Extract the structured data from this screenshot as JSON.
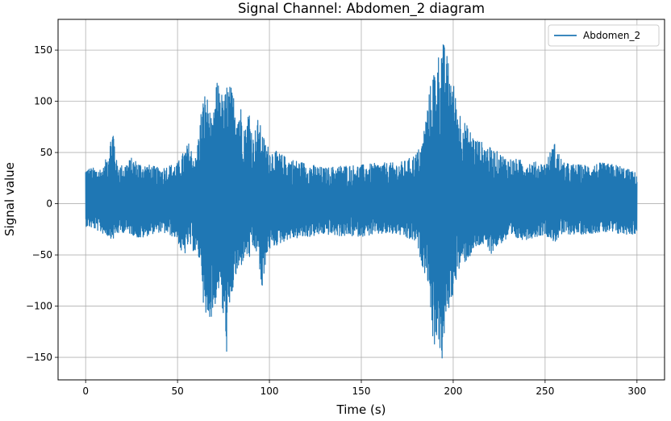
{
  "chart_data": {
    "type": "line",
    "title": "Signal Channel: Abdomen_2 diagram",
    "xlabel": "Time (s)",
    "ylabel": "Signal value",
    "xlim": [
      -15,
      315
    ],
    "ylim": [
      -172,
      180
    ],
    "x_ticks": [
      0,
      50,
      100,
      150,
      200,
      250,
      300
    ],
    "y_ticks": [
      -150,
      -100,
      -50,
      0,
      50,
      100,
      150
    ],
    "x_tick_labels": [
      "0",
      "50",
      "100",
      "150",
      "200",
      "250",
      "300"
    ],
    "y_tick_labels": [
      "−150",
      "−100",
      "−50",
      "0",
      "50",
      "100",
      "150"
    ],
    "grid": true,
    "legend_position": "top-right",
    "color": "#1f77b4",
    "series": [
      {
        "name": "Abdomen_2",
        "envelope": [
          [
            0,
            -22,
            36
          ],
          [
            5,
            -25,
            35
          ],
          [
            10,
            -30,
            36
          ],
          [
            15,
            -35,
            77
          ],
          [
            17,
            -30,
            40
          ],
          [
            20,
            -28,
            38
          ],
          [
            25,
            -30,
            45
          ],
          [
            30,
            -35,
            40
          ],
          [
            35,
            -30,
            38
          ],
          [
            40,
            -28,
            35
          ],
          [
            45,
            -30,
            38
          ],
          [
            50,
            -35,
            40
          ],
          [
            53,
            -55,
            50
          ],
          [
            56,
            -40,
            60
          ],
          [
            60,
            -50,
            45
          ],
          [
            63,
            -60,
            95
          ],
          [
            65,
            -130,
            110
          ],
          [
            67,
            -110,
            100
          ],
          [
            69,
            -112,
            75
          ],
          [
            71,
            -95,
            118
          ],
          [
            73,
            -80,
            120
          ],
          [
            75,
            -120,
            100
          ],
          [
            77,
            -150,
            120
          ],
          [
            79,
            -100,
            115
          ],
          [
            81,
            -75,
            105
          ],
          [
            83,
            -70,
            100
          ],
          [
            85,
            -60,
            95
          ],
          [
            87,
            -50,
            75
          ],
          [
            89,
            -55,
            97
          ],
          [
            91,
            -45,
            65
          ],
          [
            94,
            -50,
            85
          ],
          [
            96,
            -95,
            70
          ],
          [
            98,
            -55,
            60
          ],
          [
            100,
            -45,
            55
          ],
          [
            105,
            -40,
            50
          ],
          [
            110,
            -35,
            45
          ],
          [
            120,
            -33,
            40
          ],
          [
            130,
            -30,
            35
          ],
          [
            140,
            -32,
            38
          ],
          [
            150,
            -32,
            38
          ],
          [
            160,
            -30,
            40
          ],
          [
            170,
            -30,
            40
          ],
          [
            175,
            -35,
            43
          ],
          [
            180,
            -38,
            50
          ],
          [
            183,
            -60,
            60
          ],
          [
            185,
            -70,
            85
          ],
          [
            187,
            -80,
            110
          ],
          [
            189,
            -145,
            130
          ],
          [
            191,
            -130,
            140
          ],
          [
            193,
            -150,
            155
          ],
          [
            194,
            -155,
            162
          ],
          [
            196,
            -120,
            150
          ],
          [
            198,
            -100,
            135
          ],
          [
            200,
            -90,
            120
          ],
          [
            202,
            -70,
            100
          ],
          [
            205,
            -60,
            85
          ],
          [
            208,
            -55,
            75
          ],
          [
            212,
            -45,
            65
          ],
          [
            216,
            -40,
            60
          ],
          [
            220,
            -50,
            55
          ],
          [
            225,
            -40,
            50
          ],
          [
            230,
            -35,
            45
          ],
          [
            240,
            -35,
            42
          ],
          [
            250,
            -30,
            40
          ],
          [
            255,
            -38,
            60
          ],
          [
            260,
            -30,
            40
          ],
          [
            270,
            -30,
            38
          ],
          [
            280,
            -28,
            40
          ],
          [
            290,
            -30,
            38
          ],
          [
            300,
            -30,
            30
          ]
        ]
      }
    ]
  }
}
